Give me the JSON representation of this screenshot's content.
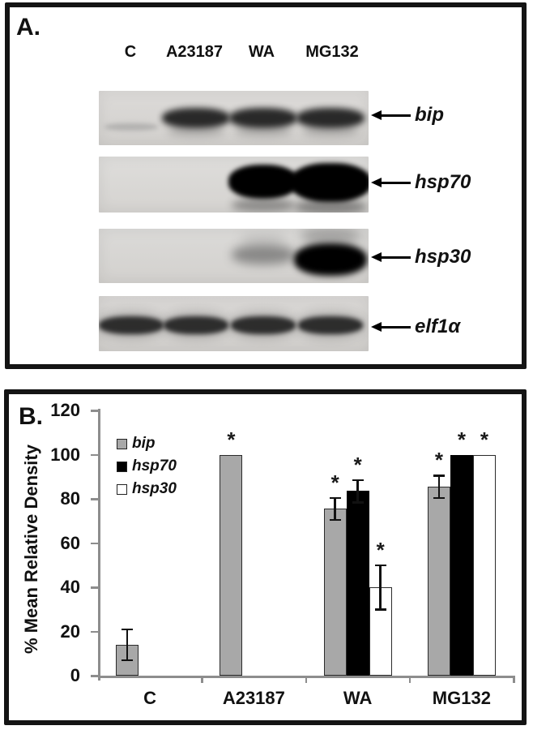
{
  "panel_a": {
    "label": "A.",
    "lanes": [
      "C",
      "A23187",
      "WA",
      "MG132"
    ],
    "rows": [
      {
        "gene": "bip",
        "bands": [
          "faint",
          "strong",
          "strong",
          "strong"
        ]
      },
      {
        "gene": "hsp70",
        "bands": [
          "none",
          "none",
          "blob",
          "blob-large"
        ]
      },
      {
        "gene": "hsp30",
        "bands": [
          "none",
          "none",
          "medium",
          "blob"
        ]
      },
      {
        "gene": "elf1α",
        "bands": [
          "strong",
          "strong",
          "strong",
          "strong"
        ]
      }
    ]
  },
  "panel_b": {
    "label": "B."
  },
  "chart_data": {
    "type": "bar",
    "categories": [
      "C",
      "A23187",
      "WA",
      "MG132"
    ],
    "series": [
      {
        "name": "bip",
        "color": "#a8a8a8",
        "values": [
          14,
          100,
          75.5,
          85.5
        ],
        "errors": [
          7,
          0,
          5,
          5
        ],
        "significant": [
          false,
          true,
          true,
          true
        ]
      },
      {
        "name": "hsp70",
        "color": "#000000",
        "values": [
          0,
          0,
          83.5,
          100
        ],
        "errors": [
          0,
          0,
          5,
          0
        ],
        "significant": [
          false,
          false,
          true,
          true
        ]
      },
      {
        "name": "hsp30",
        "color": "#ffffff",
        "values": [
          0,
          0,
          40,
          100
        ],
        "errors": [
          0,
          0,
          10,
          0
        ],
        "significant": [
          false,
          false,
          true,
          true
        ]
      }
    ],
    "ylabel": "% Mean Relative Density",
    "ylim": [
      0,
      120
    ],
    "ytick_step": 20,
    "legend_position": "upper-left-inside",
    "grid": false,
    "significance_marker": "*"
  }
}
